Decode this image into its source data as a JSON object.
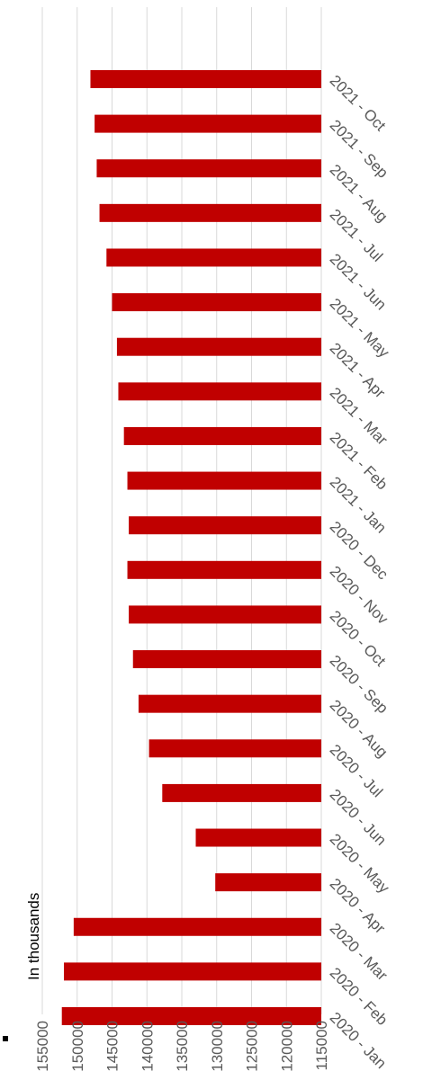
{
  "colors": {
    "bar": "#C00000",
    "grid": "#D9D9D9",
    "axis_text": "#595959",
    "note": "#000000"
  },
  "annotation": "In thousands",
  "chart_data": {
    "type": "bar",
    "orientation": "horizontal",
    "categories": [
      "2020 - Jan",
      "2020 - Feb",
      "2020 - Mar",
      "2020 - Apr",
      "2020 - May",
      "2020 - Jun",
      "2020 - Jul",
      "2020 - Aug",
      "2020 - Sep",
      "2020 - Oct",
      "2020 - Nov",
      "2020 - Dec",
      "2021 - Jan",
      "2021 - Feb",
      "2021 - Mar",
      "2021 - Apr",
      "2021 - May",
      "2021 - Jun",
      "2021 - Jul",
      "2021 - Aug",
      "2021 - Sep",
      "2021 - Oct"
    ],
    "values": [
      152200,
      151900,
      150500,
      130200,
      133000,
      137800,
      139700,
      141200,
      142000,
      142600,
      142800,
      142600,
      142800,
      143300,
      144100,
      144300,
      145000,
      145800,
      146800,
      147200,
      147500,
      148100
    ],
    "ticks": [
      115000,
      120000,
      125000,
      130000,
      135000,
      140000,
      145000,
      150000,
      155000
    ],
    "ylim": [
      115000,
      155000
    ],
    "grid": true,
    "title": "",
    "xlabel": "",
    "ylabel": ""
  }
}
